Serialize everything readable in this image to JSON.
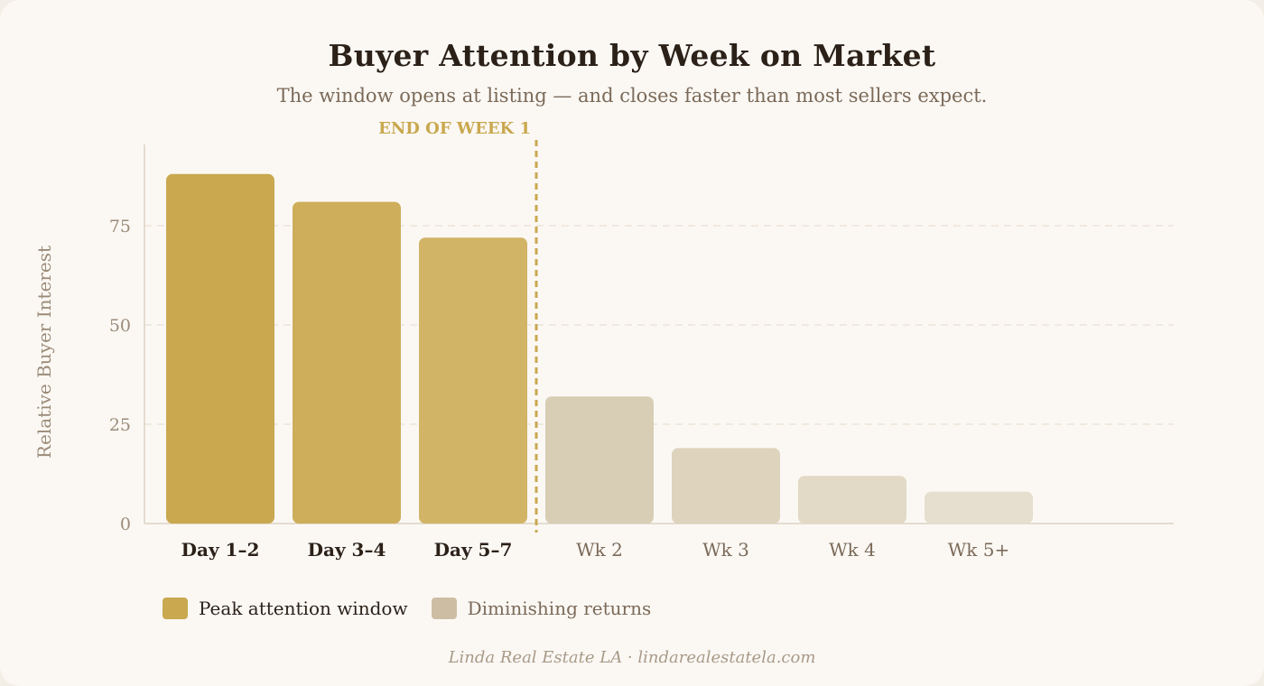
{
  "chart_data": {
    "type": "bar",
    "title": "Buyer Attention by Week on Market",
    "subtitle": "The window opens at listing — and closes faster than most sellers expect.",
    "ylabel": "Relative Buyer Interest",
    "xlabel": "",
    "ylim": [
      0,
      90
    ],
    "yticks": [
      0,
      25,
      50,
      75
    ],
    "grid": "horizontal dashed",
    "categories": [
      "Day 1–2",
      "Day 3–4",
      "Day 5–7",
      "Wk 2",
      "Wk 3",
      "Wk 4",
      "Wk 5+"
    ],
    "values": [
      88,
      81,
      72,
      32,
      19,
      12,
      8
    ],
    "groups": [
      "peak",
      "peak",
      "peak",
      "diminishing",
      "diminishing",
      "diminishing",
      "diminishing"
    ],
    "annotation": {
      "label": "END OF WEEK 1",
      "after_category": "Day 5–7",
      "style": "dashed vertical line"
    },
    "legend": {
      "placement": "bottom-left",
      "items": [
        {
          "key": "peak",
          "label": "Peak attention window",
          "color": "#c9a84f"
        },
        {
          "key": "diminishing",
          "label": "Diminishing returns",
          "color": "#cdbea3"
        }
      ]
    },
    "colors": {
      "bars": [
        "#c9a84f",
        "#ceae5a",
        "#d2b467",
        "#d8cdb5",
        "#ded3bd",
        "#e2d9c6",
        "#e6dece"
      ],
      "annotation": "#c9a84f",
      "axis": "#ddd2c2",
      "grid": "#ece4d8",
      "tick_label": "#9b8b78",
      "category_peak": "#2b2118",
      "category_dim": "#7b6a58"
    }
  },
  "footer": "Linda Real Estate LA · lindarealestatela.com"
}
